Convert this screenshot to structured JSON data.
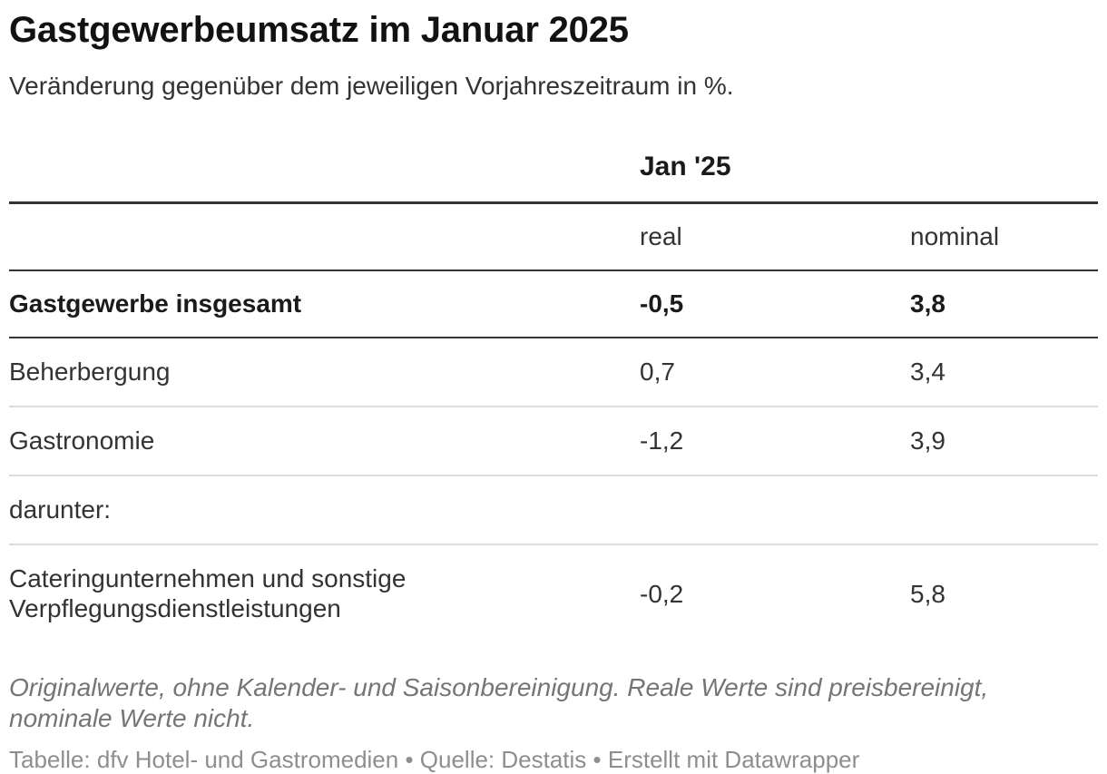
{
  "header": {
    "title": "Gastgewerbeumsatz im Januar 2025",
    "subtitle": "Veränderung gegenüber dem jeweiligen Vorjahreszeitraum in %."
  },
  "table": {
    "period_header": "Jan '25",
    "columns": {
      "real": "real",
      "nominal": "nominal"
    },
    "rows": [
      {
        "label": "Gastgewerbe insgesamt",
        "real": "-0,5",
        "nominal": "3,8"
      },
      {
        "label": "Beherbergung",
        "real": "0,7",
        "nominal": "3,4"
      },
      {
        "label": "Gastronomie",
        "real": "-1,2",
        "nominal": "3,9"
      },
      {
        "label": "darunter:",
        "real": "",
        "nominal": ""
      },
      {
        "label": "Cateringunternehmen und sonstige Verpflegungsdienstleistungen",
        "real": "-0,2",
        "nominal": "5,8"
      }
    ]
  },
  "footer": {
    "note": "Originalwerte, ohne Kalender- und Saisonbereinigung. Reale Werte sind preisbereinigt, nominale Werte nicht.",
    "credits": "Tabelle: dfv Hotel- und Gastromedien • Quelle: Destatis • Erstellt mit Datawrapper"
  },
  "colors": {
    "title": "#121212",
    "body_text": "#333333",
    "dark_rule": "#333333",
    "light_rule": "#dddddd",
    "note_text": "#757575",
    "credits_text": "#8e8e8e",
    "background": "#ffffff"
  },
  "chart_data": {
    "type": "table",
    "title": "Gastgewerbeumsatz im Januar 2025",
    "subtitle": "Veränderung gegenüber dem jeweiligen Vorjahreszeitraum in %.",
    "column_group_header": "Jan '25",
    "columns": [
      "",
      "real",
      "nominal"
    ],
    "rows": [
      [
        "Gastgewerbe insgesamt",
        -0.5,
        3.8
      ],
      [
        "Beherbergung",
        0.7,
        3.4
      ],
      [
        "Gastronomie",
        -1.2,
        3.9
      ],
      [
        "darunter:",
        null,
        null
      ],
      [
        "Cateringunternehmen und sonstige Verpflegungsdienstleistungen",
        -0.2,
        5.8
      ]
    ],
    "value_format": "decimal comma, one fractional digit",
    "emphasized_row": "Gastgewerbe insgesamt",
    "note": "Originalwerte, ohne Kalender- und Saisonbereinigung. Reale Werte sind preisbereinigt, nominale Werte nicht.",
    "credits": "Tabelle: dfv Hotel- und Gastromedien • Quelle: Destatis • Erstellt mit Datawrapper"
  }
}
